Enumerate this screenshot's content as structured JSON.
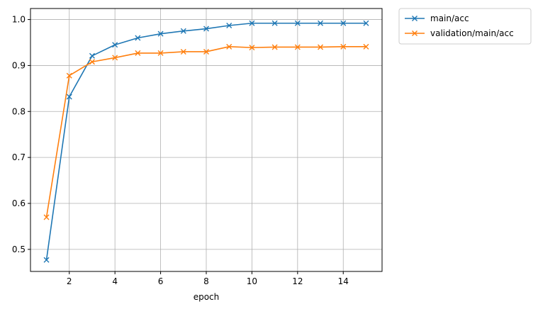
{
  "chart_data": {
    "type": "line",
    "xlabel": "epoch",
    "ylabel": "",
    "title": "",
    "xlim": [
      0.3,
      15.7
    ],
    "ylim": [
      0.452,
      1.024
    ],
    "xticks": [
      2,
      4,
      6,
      8,
      10,
      12,
      14
    ],
    "yticks": [
      0.5,
      0.6,
      0.7,
      0.8,
      0.9,
      1.0
    ],
    "xtick_labels": [
      "2",
      "4",
      "6",
      "8",
      "10",
      "12",
      "14"
    ],
    "ytick_labels": [
      "0.5",
      "0.6",
      "0.7",
      "0.8",
      "0.9",
      "1.0"
    ],
    "grid": true,
    "legend_position": "outside-top-right",
    "marker": "x",
    "x": [
      1,
      2,
      3,
      4,
      5,
      6,
      7,
      8,
      9,
      10,
      11,
      12,
      13,
      14,
      15
    ],
    "series": [
      {
        "name": "main/acc",
        "color": "#1f77b4",
        "values": [
          0.477,
          0.832,
          0.921,
          0.945,
          0.96,
          0.969,
          0.975,
          0.98,
          0.987,
          0.992,
          0.992,
          0.992,
          0.992,
          0.992,
          0.992
        ]
      },
      {
        "name": "validation/main/acc",
        "color": "#ff7f0e",
        "values": [
          0.57,
          0.878,
          0.908,
          0.917,
          0.927,
          0.927,
          0.93,
          0.93,
          0.941,
          0.939,
          0.94,
          0.94,
          0.94,
          0.941,
          0.941
        ]
      }
    ]
  }
}
